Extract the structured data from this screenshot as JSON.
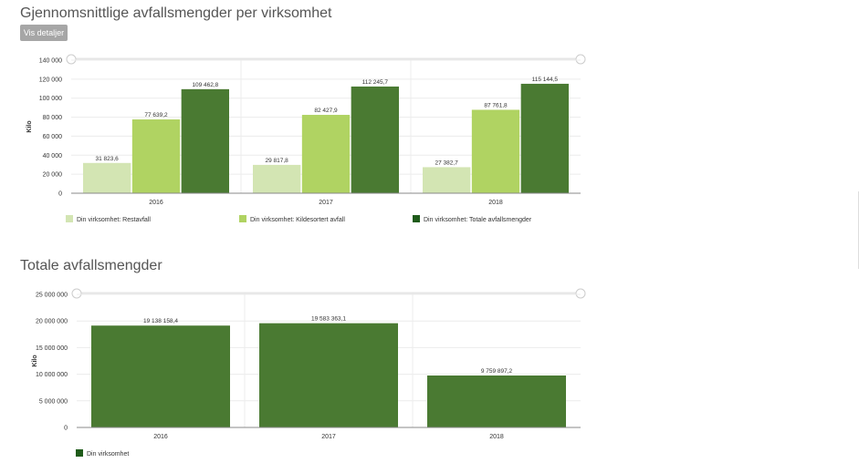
{
  "section1": {
    "title": "Gjennomsnittlige avfallsmengder per virksomhet",
    "button_label": "Vis detaljer"
  },
  "section2": {
    "title": "Totale avfallsmengder"
  },
  "colors": {
    "rest": "#d3e5b3",
    "kilde": "#b0d362",
    "total": "#4a7a32",
    "total_legend": "#1f5b1a"
  },
  "chart_data": [
    {
      "type": "bar",
      "title": "Gjennomsnittlige avfallsmengder per virksomhet",
      "categories": [
        "2016",
        "2017",
        "2018"
      ],
      "ylabel": "Kilo",
      "ylim": [
        0,
        140000
      ],
      "yticks": [
        0,
        20000,
        40000,
        60000,
        80000,
        100000,
        120000,
        140000
      ],
      "ytick_labels": [
        "0",
        "20 000",
        "40 000",
        "60 000",
        "80 000",
        "100 000",
        "120 000",
        "140 000"
      ],
      "grid": true,
      "legend_position": "bottom",
      "series": [
        {
          "name": "Din virksomhet: Restavfall",
          "values": [
            31823.6,
            29817.8,
            27382.7
          ],
          "labels": [
            "31 823,6",
            "29 817,8",
            "27 382,7"
          ]
        },
        {
          "name": "Din virksomhet: Kildesortert avfall",
          "values": [
            77639.2,
            82427.9,
            87761.8
          ],
          "labels": [
            "77 639,2",
            "82 427,9",
            "87 761,8"
          ]
        },
        {
          "name": "Din virksomhet: Totale avfallsmengder",
          "values": [
            109462.8,
            112245.7,
            115144.5
          ],
          "labels": [
            "109 462,8",
            "112 245,7",
            "115 144,5"
          ]
        }
      ]
    },
    {
      "type": "bar",
      "title": "Totale avfallsmengder",
      "categories": [
        "2016",
        "2017",
        "2018"
      ],
      "ylabel": "Kilo",
      "ylim": [
        0,
        25000000
      ],
      "yticks": [
        0,
        5000000,
        10000000,
        15000000,
        20000000,
        25000000
      ],
      "ytick_labels": [
        "0",
        "5 000 000",
        "10 000 000",
        "15 000 000",
        "20 000 000",
        "25 000 000"
      ],
      "grid": true,
      "legend_position": "bottom",
      "series": [
        {
          "name": "Din virksomhet",
          "values": [
            19138158.4,
            19583363.1,
            9759897.2
          ],
          "labels": [
            "19 138 158,4",
            "19 583 363,1",
            "9 759 897,2"
          ]
        }
      ]
    }
  ]
}
